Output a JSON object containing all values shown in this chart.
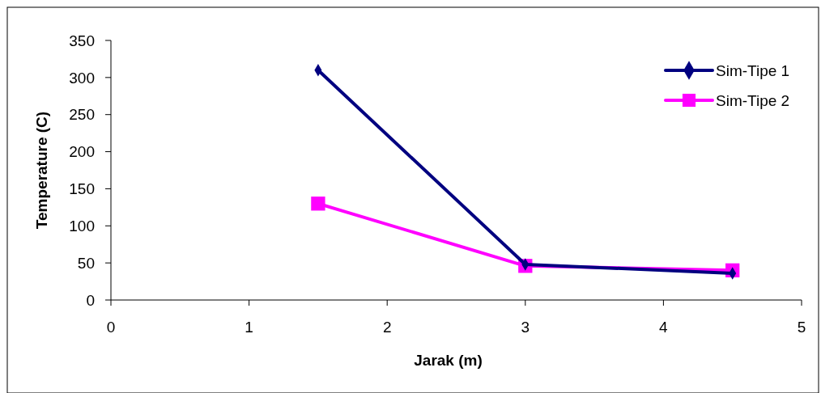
{
  "chart_data": {
    "type": "line",
    "xlabel": "Jarak (m)",
    "ylabel": "Temperature (C)",
    "xlim": [
      0,
      5
    ],
    "xticks": [
      0,
      1,
      2,
      3,
      4,
      5
    ],
    "ylim": [
      0,
      350
    ],
    "yticks": [
      0,
      50,
      100,
      150,
      200,
      250,
      300,
      350
    ],
    "grid": false,
    "legend": "top right",
    "line_style": "solid",
    "series": [
      {
        "name": "Sim-Tipe 1",
        "color": "#000080",
        "marker": "diamond",
        "x": [
          1.5,
          3,
          4.5
        ],
        "values": [
          310,
          48,
          36
        ]
      },
      {
        "name": "Sim-Tipe 2",
        "color": "#ff00ff",
        "marker": "square",
        "x": [
          1.5,
          3,
          4.5
        ],
        "values": [
          130,
          46,
          40
        ]
      }
    ]
  }
}
